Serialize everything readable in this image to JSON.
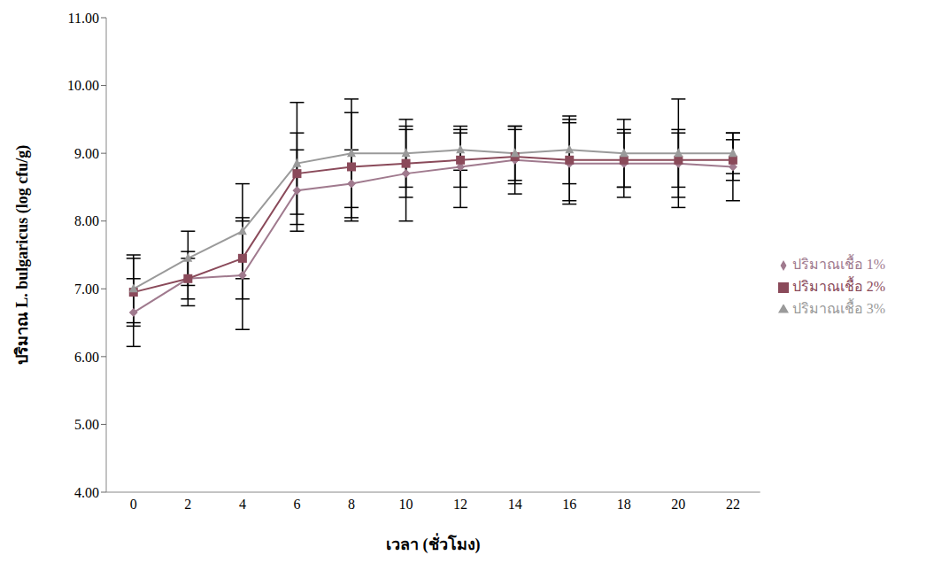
{
  "chart_data": {
    "type": "line",
    "x_label": "เวลา (ชั่วโมง)",
    "y_label": "ปริมาณ L. bulgaricus (log cfu/g)",
    "x": [
      0,
      2,
      4,
      6,
      8,
      10,
      12,
      14,
      16,
      18,
      20,
      22
    ],
    "xlim": [
      -1,
      23
    ],
    "xticks": [
      0,
      2,
      4,
      6,
      8,
      10,
      12,
      14,
      16,
      18,
      20,
      22
    ],
    "ylim": [
      4,
      11
    ],
    "yticks": [
      {
        "value": 4,
        "label": "4.00"
      },
      {
        "value": 5,
        "label": "5.00"
      },
      {
        "value": 6,
        "label": "6.00"
      },
      {
        "value": 7,
        "label": "7.00"
      },
      {
        "value": 8,
        "label": "8.00"
      },
      {
        "value": 9,
        "label": "9.00"
      },
      {
        "value": 10,
        "label": "10.00"
      },
      {
        "value": 11,
        "label": "11.00"
      }
    ],
    "grid": false,
    "legend": "right",
    "series": [
      {
        "name": "ปริมาณเชื้อ 1%",
        "color": "#a07a8e",
        "marker": "diamond",
        "values": [
          6.65,
          7.15,
          7.2,
          8.45,
          8.55,
          8.7,
          8.8,
          8.9,
          8.85,
          8.85,
          8.85,
          8.8
        ],
        "errors": [
          0.5,
          0.4,
          0.8,
          0.6,
          0.5,
          0.7,
          0.6,
          0.5,
          0.6,
          0.5,
          0.5,
          0.5
        ]
      },
      {
        "name": "ปริมาณเชื้อ 2%",
        "color": "#8a4a5a",
        "marker": "square",
        "values": [
          6.95,
          7.15,
          7.45,
          8.7,
          8.8,
          8.85,
          8.9,
          8.95,
          8.9,
          8.9,
          8.9,
          8.9
        ],
        "errors": [
          0.5,
          0.3,
          0.6,
          0.6,
          0.8,
          0.5,
          0.4,
          0.4,
          0.6,
          0.4,
          0.4,
          0.3
        ]
      },
      {
        "name": "ปริมาณเชื้อ 3%",
        "color": "#9a9a9a",
        "marker": "triangle",
        "values": [
          7.0,
          7.45,
          7.85,
          8.85,
          9.0,
          9.0,
          9.05,
          9.0,
          9.05,
          9.0,
          9.0,
          9.0
        ],
        "errors": [
          0.5,
          0.4,
          0.7,
          0.9,
          0.8,
          0.5,
          0.3,
          0.4,
          0.5,
          0.5,
          0.8,
          0.3
        ]
      }
    ]
  }
}
